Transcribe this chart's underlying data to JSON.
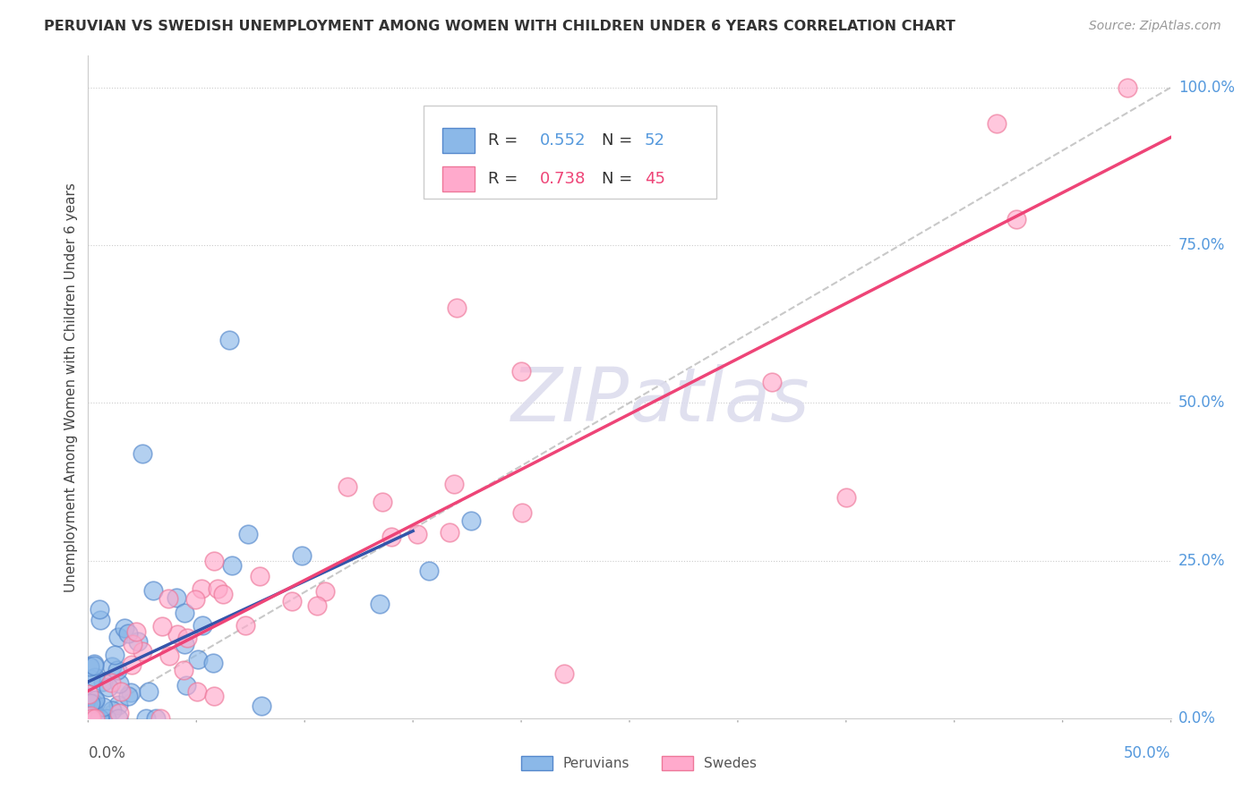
{
  "title": "PERUVIAN VS SWEDISH UNEMPLOYMENT AMONG WOMEN WITH CHILDREN UNDER 6 YEARS CORRELATION CHART",
  "source": "Source: ZipAtlas.com",
  "ylabel": "Unemployment Among Women with Children Under 6 years",
  "legend1_r": "0.552",
  "legend1_n": "52",
  "legend2_r": "0.738",
  "legend2_n": "45",
  "peruvian_color": "#8BB8E8",
  "peruvian_edge": "#5588CC",
  "swede_color": "#FFAACC",
  "swede_edge": "#EE7799",
  "peruvian_line_color": "#3355AA",
  "swede_line_color": "#EE4477",
  "diagonal_color": "#BBBBBB",
  "watermark_color": "#DDDDEE",
  "xlim": [
    0,
    0.5
  ],
  "ylim": [
    0,
    1.05
  ],
  "peru_seed": 42,
  "swe_seed": 99
}
